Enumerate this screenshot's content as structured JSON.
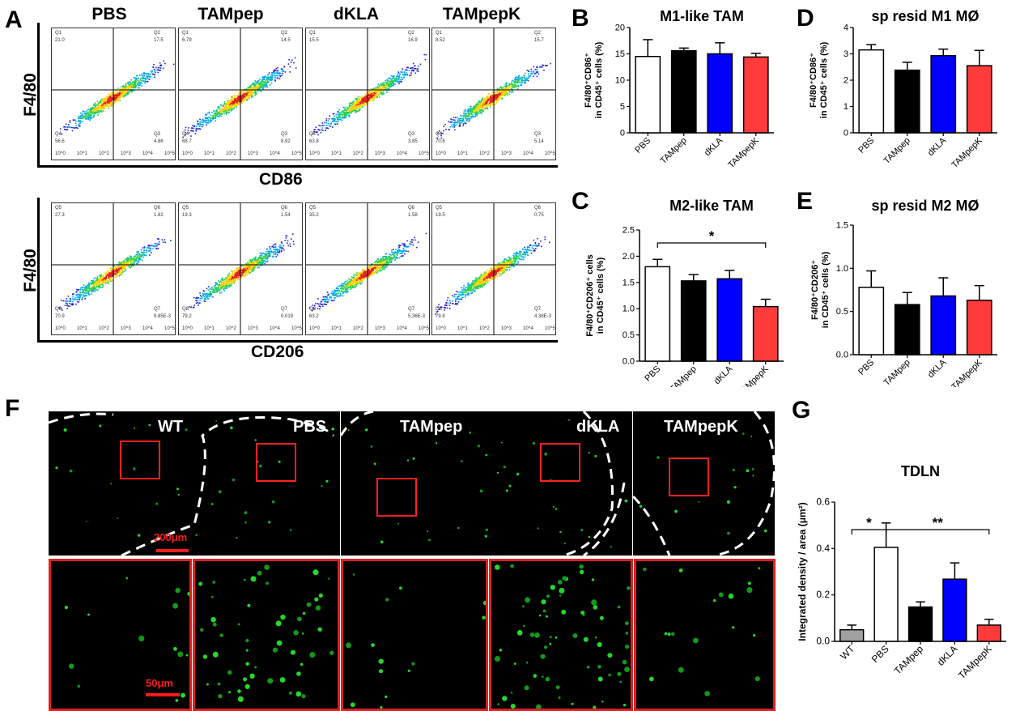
{
  "panels": {
    "A": "A",
    "B": "B",
    "C": "C",
    "D": "D",
    "E": "E",
    "F": "F",
    "G": "G"
  },
  "flow": {
    "groups": [
      "PBS",
      "TAMpep",
      "dKLA",
      "TAMpepK"
    ],
    "x_axis_top": "CD86",
    "x_axis_bottom": "CD206",
    "y_axis": "F4/80",
    "top_row": [
      {
        "tl": "Q1",
        "tl_v": "21.0",
        "tr": "Q2",
        "tr_v": "17.5",
        "bl": "Q4",
        "bl_v": "56.6",
        "br": "Q3",
        "br_v": "4.86"
      },
      {
        "tl": "Q1",
        "tl_v": "6.79",
        "tr": "Q2",
        "tr_v": "14.5",
        "bl": "Q4",
        "bl_v": "68.7",
        "br": "Q3",
        "br_v": "8.92"
      },
      {
        "tl": "Q1",
        "tl_v": "15.5",
        "tr": "Q2",
        "tr_v": "16.9",
        "bl": "Q4",
        "bl_v": "63.8",
        "br": "Q3",
        "br_v": "3.85"
      },
      {
        "tl": "Q1",
        "tl_v": "8.52",
        "tr": "Q2",
        "tr_v": "15.7",
        "bl": "Q4",
        "bl_v": "70.6",
        "br": "Q3",
        "br_v": "5.14"
      }
    ],
    "bottom_row": [
      {
        "tl": "Q5",
        "tl_v": "27.3",
        "tr": "Q6",
        "tr_v": "1.82",
        "bl": "Q8",
        "bl_v": "70.9",
        "br": "Q7",
        "br_v": "9.85E-3"
      },
      {
        "tl": "Q5",
        "tl_v": "19.3",
        "tr": "Q6",
        "tr_v": "1.54",
        "bl": "Q8",
        "bl_v": "79.2",
        "br": "Q7",
        "br_v": "0.019"
      },
      {
        "tl": "Q5",
        "tl_v": "35.2",
        "tr": "Q6",
        "tr_v": "1.58",
        "bl": "Q8",
        "bl_v": "63.2",
        "br": "Q7",
        "br_v": "5.36E-3"
      },
      {
        "tl": "Q5",
        "tl_v": "19.5",
        "tr": "Q6",
        "tr_v": "0.75",
        "bl": "Q8",
        "bl_v": "79.8",
        "br": "Q7",
        "br_v": "4.38E-3"
      }
    ],
    "tick_labels": [
      "10^0",
      "10^1",
      "10^2",
      "10^3",
      "10^4",
      "10^5"
    ]
  },
  "chart_data": [
    {
      "id": "B",
      "type": "bar",
      "title": "M1-like TAM",
      "ylabel_lines": [
        "F4/80⁺CD86⁺",
        "in CD45⁺ cells (%)"
      ],
      "categories": [
        "PBS",
        "TAMpep",
        "dKLA",
        "TAMpepK"
      ],
      "values": [
        14.5,
        15.6,
        15.0,
        14.4
      ],
      "errors": [
        3.2,
        0.5,
        2.1,
        0.7
      ],
      "colors": [
        "#ffffff",
        "#000000",
        "#0000ff",
        "#ff3b3b"
      ],
      "ylim": [
        0,
        20
      ],
      "yticks": [
        0,
        5,
        10,
        15,
        20
      ],
      "ytick_labels": [
        "0",
        "5",
        "10",
        "15",
        "20"
      ]
    },
    {
      "id": "D",
      "type": "bar",
      "title": "sp resid M1 MØ",
      "ylabel_lines": [
        "F4/80⁺CD86⁺",
        "in CD45⁺ cells (%)"
      ],
      "categories": [
        "PBS",
        "TAMpep",
        "dKLA",
        "TAMpepK"
      ],
      "values": [
        3.15,
        2.38,
        2.93,
        2.55
      ],
      "errors": [
        0.2,
        0.3,
        0.25,
        0.58
      ],
      "colors": [
        "#ffffff",
        "#000000",
        "#0000ff",
        "#ff3b3b"
      ],
      "ylim": [
        0,
        4
      ],
      "yticks": [
        0,
        1,
        2,
        3,
        4
      ],
      "ytick_labels": [
        "0",
        "1",
        "2",
        "3",
        "4"
      ]
    },
    {
      "id": "C",
      "type": "bar",
      "title": "M2-like TAM",
      "ylabel_lines": [
        "F4/80⁺CD206⁺ cells",
        "in CD45⁺ cells (%)"
      ],
      "categories": [
        "PBS",
        "TAMpep",
        "dKLA",
        "TAMpepK"
      ],
      "values": [
        1.8,
        1.53,
        1.57,
        1.04
      ],
      "errors": [
        0.14,
        0.12,
        0.16,
        0.14
      ],
      "colors": [
        "#ffffff",
        "#000000",
        "#0000ff",
        "#ff3b3b"
      ],
      "ylim": [
        0,
        2.5
      ],
      "yticks": [
        0,
        0.5,
        1.0,
        1.5,
        2.0,
        2.5
      ],
      "ytick_labels": [
        "0.0",
        "0.5",
        "1.0",
        "1.5",
        "2.0",
        "2.5"
      ],
      "significance": [
        {
          "from": 0,
          "to": 3,
          "label": "*"
        }
      ]
    },
    {
      "id": "E",
      "type": "bar",
      "title": "sp resid M2 MØ",
      "ylabel_lines": [
        "F4/80⁺CD206⁺",
        "in CD45⁺ cells (%)"
      ],
      "categories": [
        "PBS",
        "TAMpep",
        "dKLA",
        "TAMpepK"
      ],
      "values": [
        0.78,
        0.58,
        0.68,
        0.63
      ],
      "errors": [
        0.19,
        0.14,
        0.21,
        0.17
      ],
      "colors": [
        "#ffffff",
        "#000000",
        "#0000ff",
        "#ff3b3b"
      ],
      "ylim": [
        0,
        1.5
      ],
      "yticks": [
        0,
        0.5,
        1.0,
        1.5
      ],
      "ytick_labels": [
        "0.0",
        "0.5",
        "1.0",
        "1.5"
      ]
    },
    {
      "id": "G",
      "type": "bar",
      "title": "TDLN",
      "ylabel_lines": [
        "Integrated density / area (μm²)"
      ],
      "categories": [
        "WT",
        "PBS",
        "TAMpep",
        "dKLA",
        "TAMpepK"
      ],
      "values": [
        0.05,
        0.405,
        0.148,
        0.268,
        0.07
      ],
      "errors": [
        0.02,
        0.105,
        0.022,
        0.07,
        0.025
      ],
      "colors": [
        "#a0a0a0",
        "#ffffff",
        "#000000",
        "#0000ff",
        "#ff3b3b"
      ],
      "ylim": [
        0,
        0.6
      ],
      "yticks": [
        0,
        0.2,
        0.4,
        0.6
      ],
      "ytick_labels": [
        "0.0",
        "0.2",
        "0.4",
        "0.6"
      ],
      "significance": [
        {
          "from": 0,
          "to": 1,
          "label": "*"
        },
        {
          "from": 1,
          "to": 4,
          "label": "**"
        }
      ]
    }
  ],
  "micro": {
    "labels": [
      "WT",
      "PBS",
      "TAMpep",
      "dKLA",
      "TAMpepK"
    ],
    "scale_top": "200μm",
    "scale_bottom": "50μm"
  }
}
